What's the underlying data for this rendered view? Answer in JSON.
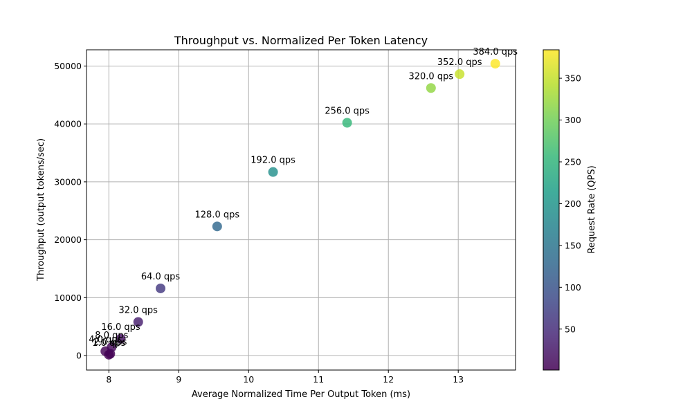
{
  "chart_data": {
    "type": "scatter",
    "title": "Throughput vs. Normalized Per Token Latency",
    "xlabel": "Average Normalized Time Per Output Token (ms)",
    "ylabel": "Throughput (output tokens/sec)",
    "xlim": [
      7.68,
      13.82
    ],
    "ylim": [
      -2500,
      52800
    ],
    "xticks": [
      8,
      9,
      10,
      11,
      12,
      13
    ],
    "yticks": [
      0,
      10000,
      20000,
      30000,
      40000,
      50000
    ],
    "grid": true,
    "colormap": "viridis",
    "colorbar": {
      "label": "Request Rate (QPS)",
      "range": [
        1,
        384
      ],
      "ticks": [
        50,
        100,
        150,
        200,
        250,
        300,
        350
      ]
    },
    "points": [
      {
        "x": 8.0,
        "y": 150,
        "qps": 1,
        "label": "1.0 qps"
      },
      {
        "x": 8.02,
        "y": 300,
        "qps": 2,
        "label": "2.0 qps"
      },
      {
        "x": 7.95,
        "y": 750,
        "qps": 4,
        "label": "4.0 qps"
      },
      {
        "x": 8.04,
        "y": 1450,
        "qps": 8,
        "label": "8.0 qps"
      },
      {
        "x": 8.17,
        "y": 2900,
        "qps": 16,
        "label": "16.0 qps"
      },
      {
        "x": 8.42,
        "y": 5800,
        "qps": 32,
        "label": "32.0 qps"
      },
      {
        "x": 8.74,
        "y": 11600,
        "qps": 64,
        "label": "64.0 qps"
      },
      {
        "x": 9.55,
        "y": 22300,
        "qps": 128,
        "label": "128.0 qps"
      },
      {
        "x": 10.35,
        "y": 31700,
        "qps": 192,
        "label": "192.0 qps"
      },
      {
        "x": 11.41,
        "y": 40200,
        "qps": 256,
        "label": "256.0 qps"
      },
      {
        "x": 12.61,
        "y": 46200,
        "qps": 320,
        "label": "320.0 qps"
      },
      {
        "x": 13.02,
        "y": 48600,
        "qps": 352,
        "label": "352.0 qps"
      },
      {
        "x": 13.53,
        "y": 50400,
        "qps": 384,
        "label": "384.0 qps"
      }
    ]
  }
}
